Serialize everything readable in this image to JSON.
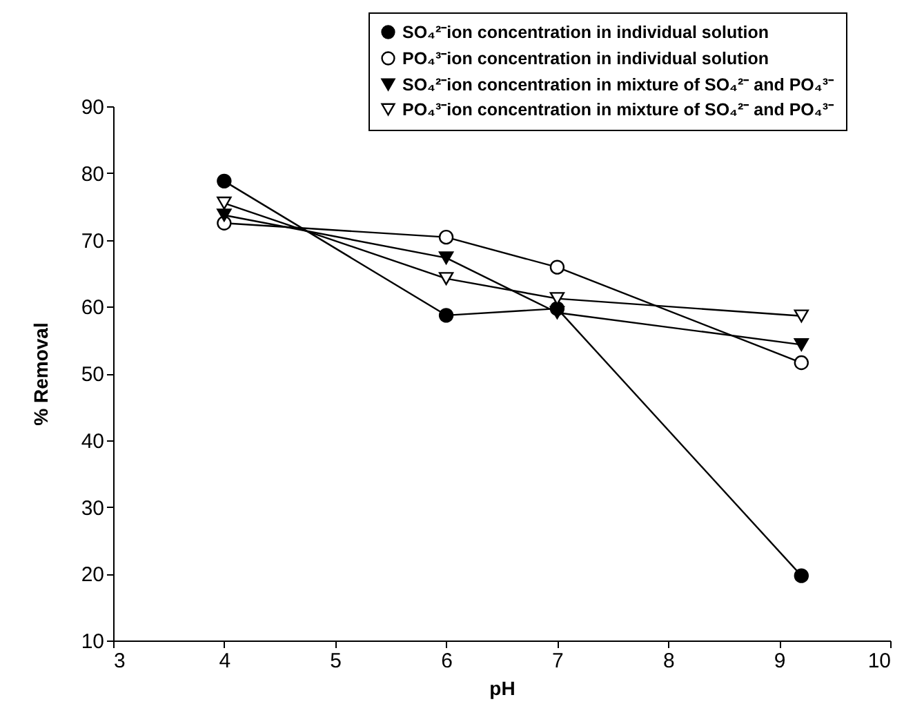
{
  "chart_data": {
    "type": "line",
    "xlabel": "pH",
    "ylabel": "% Removal",
    "xlim": [
      3,
      10
    ],
    "xticks": [
      3,
      4,
      5,
      6,
      7,
      8,
      9,
      10
    ],
    "ylim": [
      10,
      90
    ],
    "yticks": [
      10,
      20,
      30,
      40,
      50,
      60,
      70,
      80,
      90
    ],
    "grid": false,
    "legend": "top right",
    "line_style": "solid",
    "x": [
      4,
      6,
      7,
      9.2
    ],
    "series": [
      {
        "name": "SO₄²⁻ion concentration in individual solution",
        "color": "#000000",
        "marker": "circle",
        "values": [
          78.8,
          58.7,
          59.7,
          19.7
        ]
      },
      {
        "name": "PO₄³⁻ion concentration in individual solution",
        "color": "#ffffff",
        "marker": "circle",
        "values": [
          72.5,
          70.4,
          65.9,
          51.6
        ]
      },
      {
        "name": "SO₄²⁻ion concentration in mixture of SO₄²⁻ and PO₄³⁻",
        "color": "#000000",
        "marker": "triangle",
        "values": [
          73.7,
          67.3,
          59.1,
          54.3
        ]
      },
      {
        "name": "PO₄³⁻ion concentration in mixture of SO₄²⁻ and PO₄³⁻",
        "color": "#ffffff",
        "marker": "triangle",
        "values": [
          75.5,
          64.2,
          61.2,
          58.6
        ]
      }
    ]
  }
}
